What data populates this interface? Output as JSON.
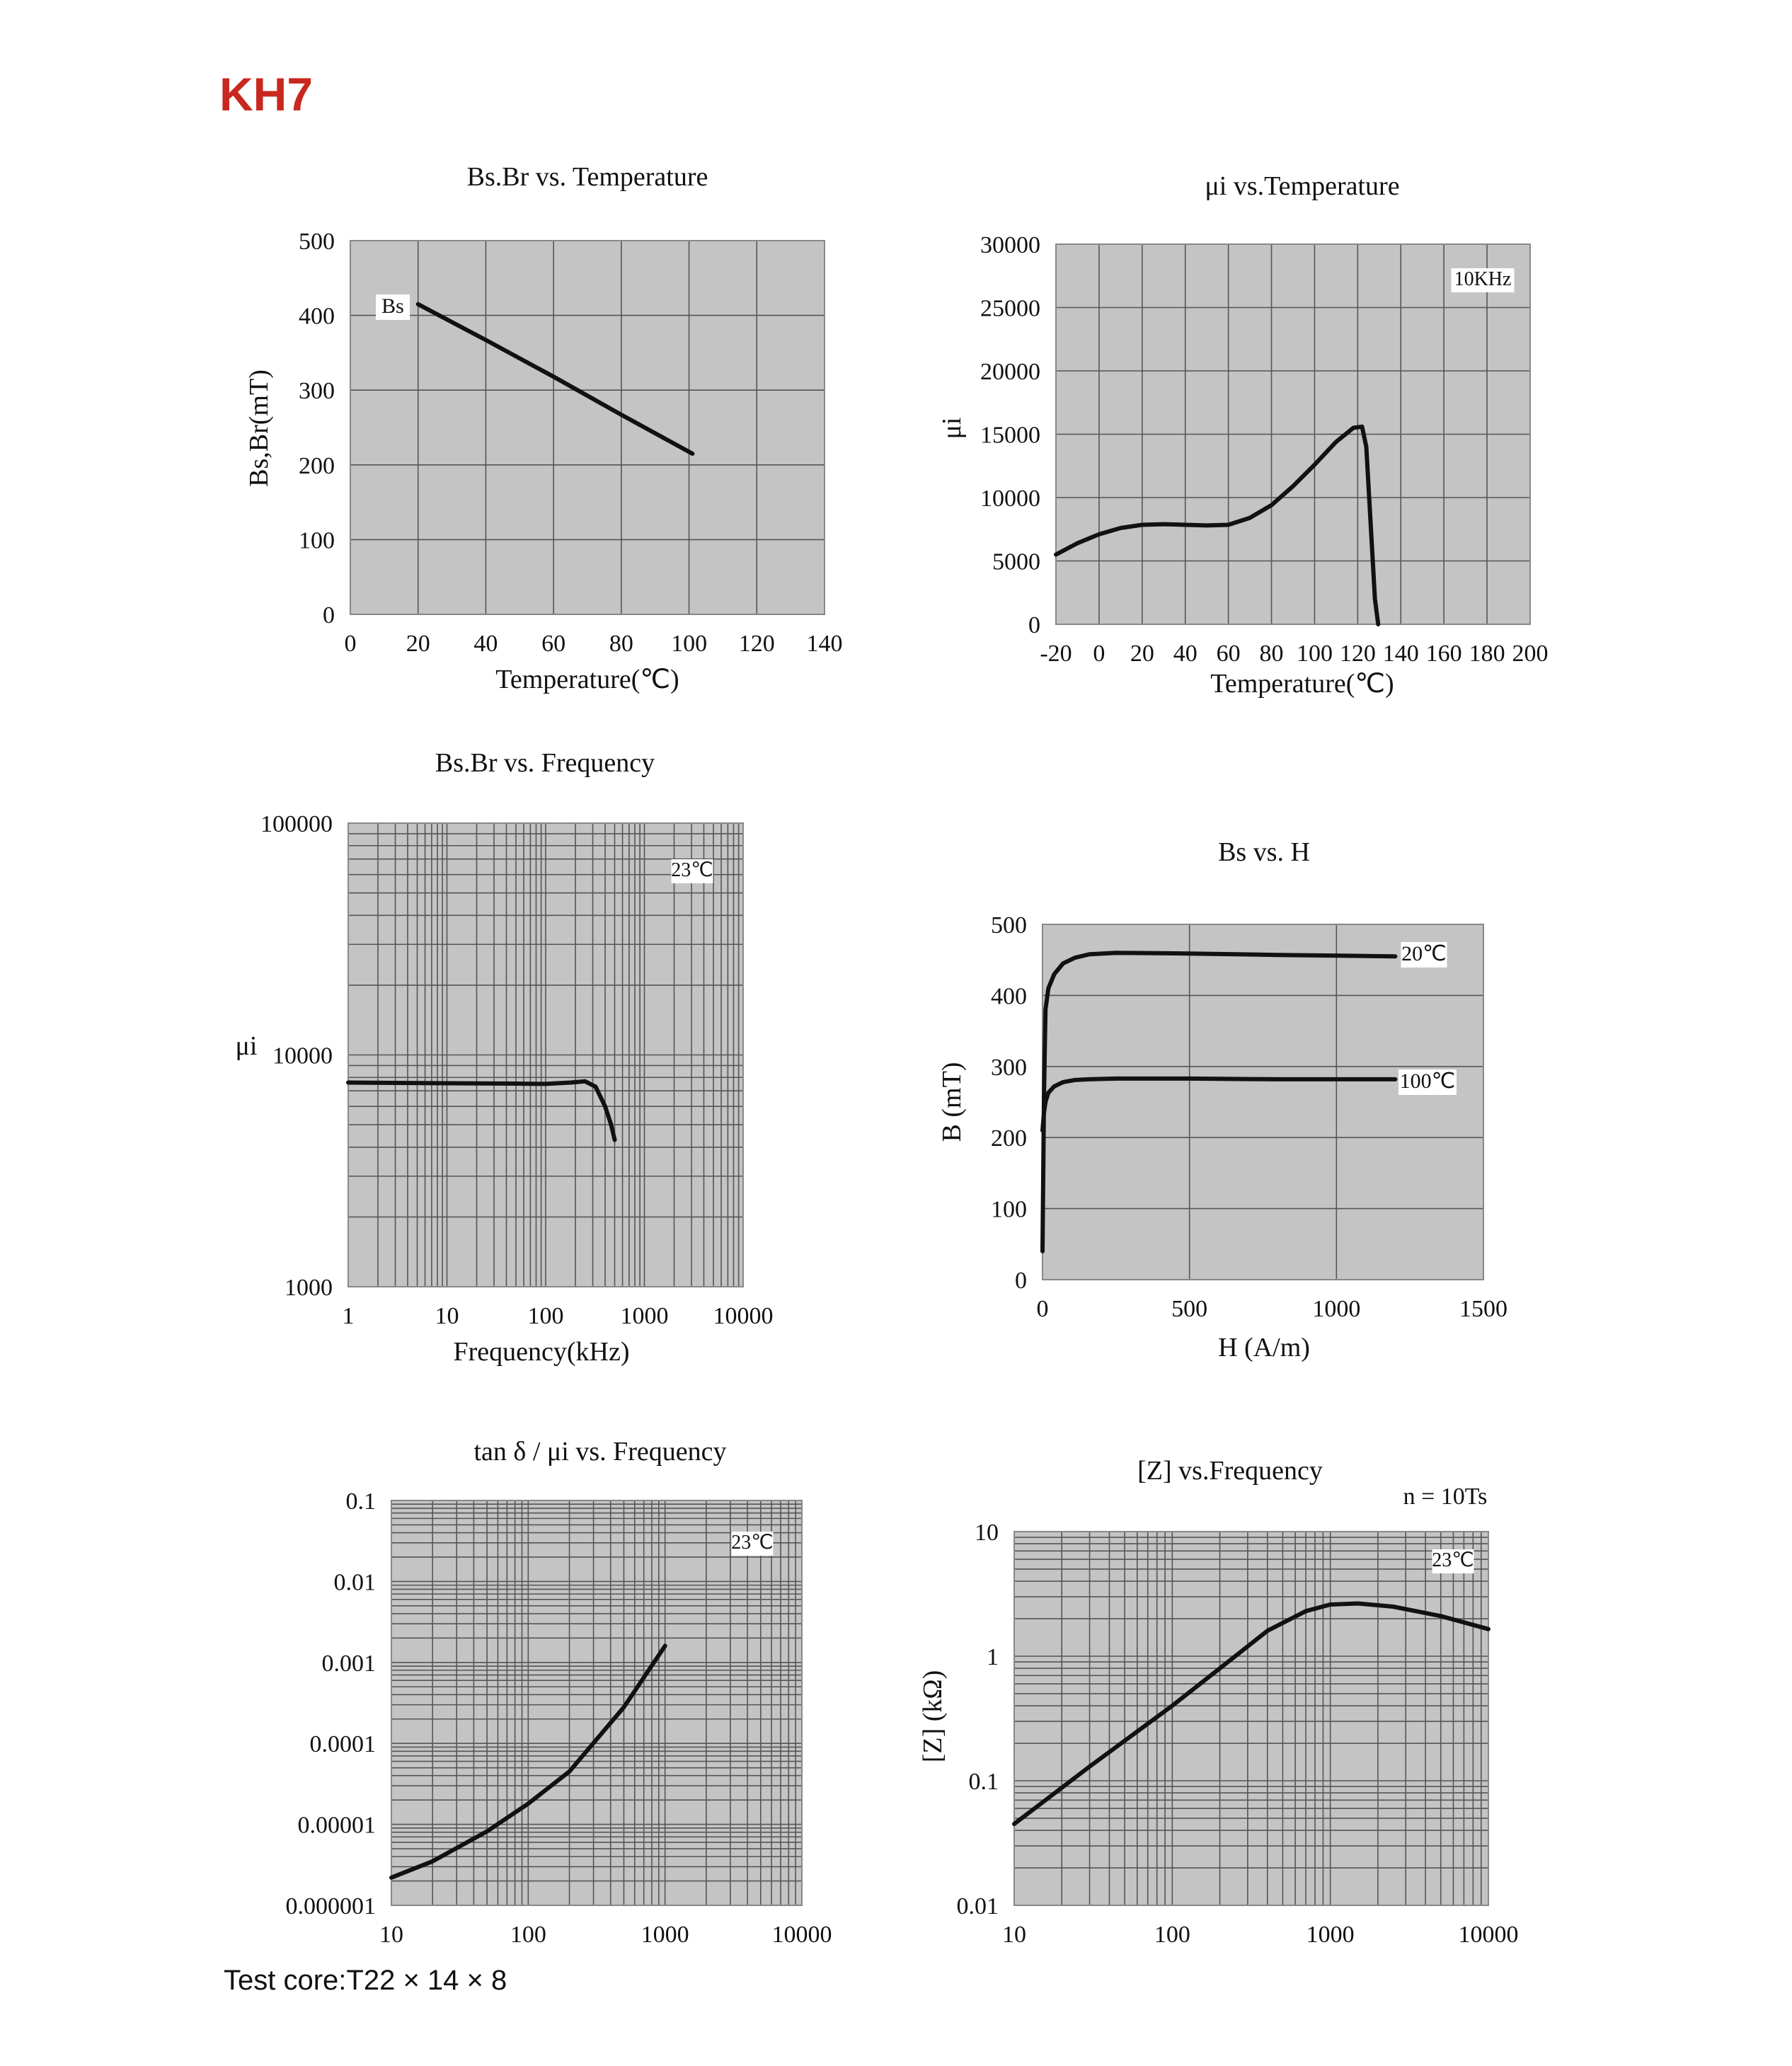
{
  "page": {
    "title": "KH7",
    "title_color": "#c8281e",
    "footer": "Test core:T22 × 14 × 8"
  },
  "colors": {
    "plot_bg": "#c4c4c4",
    "grid": "#555555",
    "curve": "#111111",
    "frame": "#888888"
  },
  "chart_data": [
    {
      "id": "bs-br-temp",
      "type": "line",
      "title": "Bs.Br  vs. Temperature",
      "xlabel": "Temperature(℃)",
      "ylabel": "Bs,Br(mT)",
      "xscale": "linear",
      "yscale": "linear",
      "xlim": [
        0,
        140
      ],
      "ylim": [
        0,
        500
      ],
      "xticks": [
        0,
        20,
        40,
        60,
        80,
        100,
        120,
        140
      ],
      "xtick_labels": [
        "0",
        "20",
        "40",
        "60",
        "80",
        "100",
        "120",
        "140"
      ],
      "yticks": [
        0,
        100,
        200,
        300,
        400,
        500
      ],
      "ytick_labels": [
        "0",
        "100",
        "200",
        "300",
        "400",
        "500"
      ],
      "grid": true,
      "annotation": "",
      "series": [
        {
          "name": "Bs",
          "x": [
            20,
            40,
            60,
            80,
            101
          ],
          "y": [
            415,
            367,
            318,
            267,
            215
          ]
        }
      ]
    },
    {
      "id": "ui-temp",
      "type": "line",
      "title": "μi  vs.Temperature",
      "xlabel": "Temperature(℃)",
      "ylabel": "μi",
      "xscale": "linear",
      "yscale": "linear",
      "xlim": [
        -20,
        200
      ],
      "ylim": [
        0,
        30000
      ],
      "xticks": [
        -20,
        0,
        20,
        40,
        60,
        80,
        100,
        120,
        140,
        160,
        180,
        200
      ],
      "xtick_labels": [
        "-20",
        "0",
        "20",
        "40",
        "60",
        "80",
        "100",
        "120",
        "140",
        "160",
        "180",
        "200"
      ],
      "yticks": [
        0,
        5000,
        10000,
        15000,
        20000,
        25000,
        30000
      ],
      "ytick_labels": [
        "0",
        "5000",
        "10000",
        "15000",
        "20000",
        "25000",
        "30000"
      ],
      "grid": true,
      "annotation": "10KHz",
      "series": [
        {
          "name": "",
          "x": [
            -20,
            -10,
            0,
            10,
            20,
            30,
            40,
            50,
            60,
            70,
            80,
            90,
            100,
            110,
            118,
            122,
            124,
            126,
            128,
            129.5
          ],
          "y": [
            5500,
            6400,
            7100,
            7600,
            7850,
            7900,
            7850,
            7800,
            7850,
            8400,
            9400,
            10900,
            12600,
            14400,
            15500,
            15600,
            14000,
            8000,
            2000,
            0
          ]
        }
      ]
    },
    {
      "id": "ui-freq",
      "type": "line",
      "title": "Bs.Br  vs.  Frequency",
      "xlabel": "Frequency(kHz)",
      "ylabel": "μi",
      "xscale": "log",
      "yscale": "log",
      "xlim": [
        1,
        10000
      ],
      "ylim": [
        1000,
        100000
      ],
      "xticks": [
        1,
        10,
        100,
        1000,
        10000
      ],
      "xtick_labels": [
        "1",
        "10",
        "100",
        "1000",
        "10000"
      ],
      "yticks": [
        1000,
        10000,
        100000
      ],
      "ytick_labels": [
        "1000",
        "10000",
        "100000"
      ],
      "grid": true,
      "annotation": "23℃",
      "series": [
        {
          "name": "",
          "x": [
            1,
            10,
            50,
            100,
            180,
            250,
            320,
            400,
            460,
            500
          ],
          "y": [
            7600,
            7550,
            7520,
            7500,
            7600,
            7700,
            7300,
            6000,
            5000,
            4300
          ]
        }
      ]
    },
    {
      "id": "b-h",
      "type": "line",
      "title": "Bs vs. H",
      "xlabel": "H  (A/m)",
      "ylabel": "B (mT)",
      "xscale": "linear",
      "yscale": "linear",
      "xlim": [
        0,
        1500
      ],
      "ylim": [
        0,
        500
      ],
      "xticks": [
        0,
        500,
        1000,
        1500
      ],
      "xtick_labels": [
        "0",
        "500",
        "1000",
        "1500"
      ],
      "yticks": [
        0,
        100,
        200,
        300,
        400,
        500
      ],
      "ytick_labels": [
        "0",
        "100",
        "200",
        "300",
        "400",
        "500"
      ],
      "grid": true,
      "annotation": "",
      "series": [
        {
          "name": "20℃",
          "x": [
            0,
            5,
            10,
            20,
            40,
            70,
            110,
            160,
            250,
            500,
            800,
            1200
          ],
          "y": [
            40,
            260,
            380,
            410,
            430,
            445,
            453,
            458,
            460,
            459,
            457,
            455
          ]
        },
        {
          "name": "100℃",
          "x": [
            0,
            5,
            10,
            20,
            40,
            70,
            110,
            160,
            250,
            500,
            800,
            1200
          ],
          "y": [
            210,
            235,
            250,
            263,
            272,
            278,
            281,
            282,
            283,
            283,
            282,
            282
          ]
        }
      ]
    },
    {
      "id": "tan-freq",
      "type": "line",
      "title": "tan δ / μi vs. Frequency",
      "xlabel": "",
      "ylabel": "",
      "xscale": "log",
      "yscale": "log",
      "xlim": [
        10,
        10000
      ],
      "ylim": [
        1e-06,
        0.1
      ],
      "xticks": [
        10,
        100,
        1000,
        10000
      ],
      "xtick_labels": [
        "10",
        "100",
        "1000",
        "10000"
      ],
      "yticks": [
        1e-06,
        1e-05,
        0.0001,
        0.001,
        0.01,
        0.1
      ],
      "ytick_labels": [
        "0.000001",
        "0.00001",
        "0.0001",
        "0.001",
        "0.01",
        "0.1"
      ],
      "grid": true,
      "annotation": "23℃",
      "series": [
        {
          "name": "",
          "x": [
            10,
            20,
            50,
            100,
            200,
            500,
            1000
          ],
          "y": [
            2.2e-06,
            3.5e-06,
            8.2e-06,
            1.8e-05,
            4.5e-05,
            0.00028,
            0.0016
          ]
        }
      ]
    },
    {
      "id": "z-freq",
      "type": "line",
      "title": "[Z]    vs.Frequency",
      "subtitle": "n = 10Ts",
      "xlabel": "",
      "ylabel": "[Z] (kΩ)",
      "xscale": "log",
      "yscale": "log",
      "xlim": [
        10,
        10000
      ],
      "ylim": [
        0.01,
        10
      ],
      "xticks": [
        10,
        100,
        1000,
        10000
      ],
      "xtick_labels": [
        "10",
        "100",
        "1000",
        "10000"
      ],
      "yticks": [
        0.01,
        0.1,
        1,
        10
      ],
      "ytick_labels": [
        "0.01",
        "0.1",
        "1",
        "10"
      ],
      "grid": true,
      "annotation": "23℃",
      "series": [
        {
          "name": "",
          "x": [
            10,
            30,
            100,
            200,
            400,
            700,
            1000,
            1500,
            2500,
            5000,
            10000
          ],
          "y": [
            0.045,
            0.13,
            0.4,
            0.8,
            1.6,
            2.3,
            2.6,
            2.65,
            2.5,
            2.1,
            1.65
          ]
        }
      ]
    }
  ]
}
